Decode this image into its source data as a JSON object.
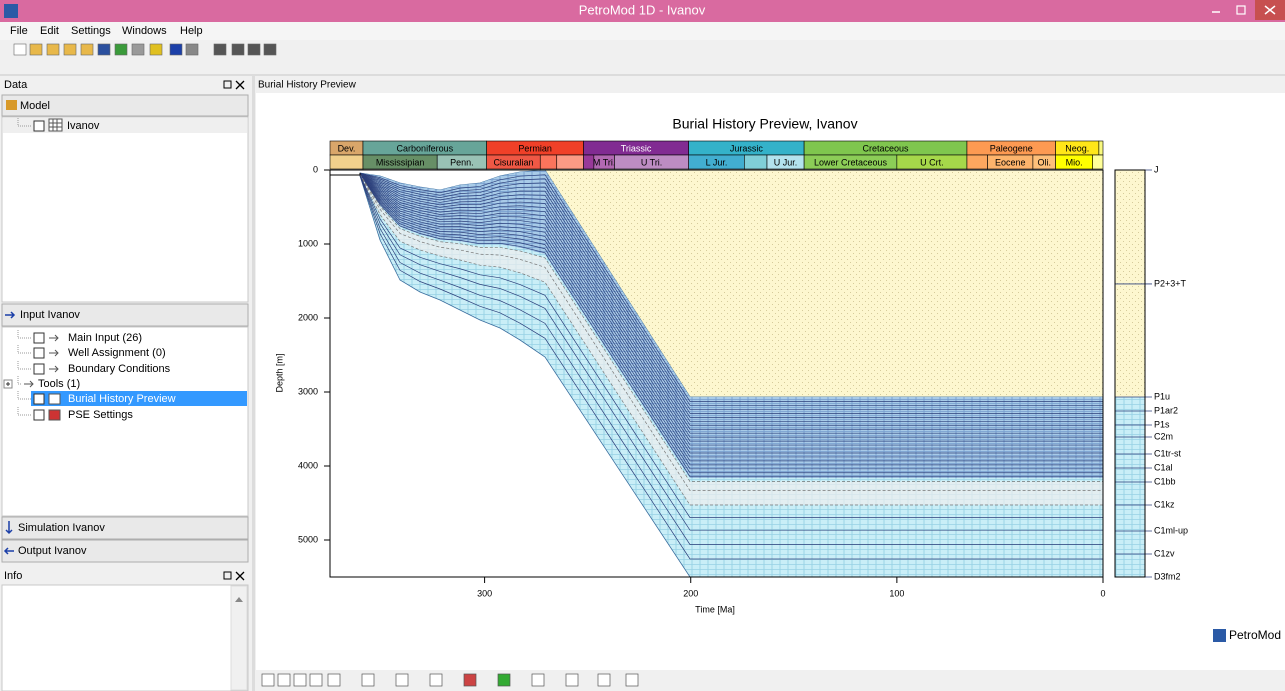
{
  "window": {
    "title": "PetroMod 1D - Ivanov"
  },
  "menu": [
    "File",
    "Edit",
    "Settings",
    "Windows",
    "Help"
  ],
  "data_panel": {
    "title": "Data",
    "model_button": "Model",
    "model_tree": [
      "Ivanov"
    ],
    "input_button": "Input Ivanov",
    "input_tree": [
      "Main Input (26)",
      "Well Assignment (0)",
      "Boundary Conditions",
      "Tools (1)",
      "Burial History Preview",
      "PSE Settings"
    ],
    "simulation_button": "Simulation Ivanov",
    "output_button": "Output Ivanov"
  },
  "info_panel": {
    "title": "Info"
  },
  "view": {
    "title": "Burial History Preview"
  },
  "logo": "PetroMod",
  "chart_data": {
    "type": "burial-history",
    "title": "Burial History Preview, Ivanov",
    "x_label": "Time [Ma]",
    "y_label": "Depth [m]",
    "xlim": [
      375,
      0
    ],
    "xticks": [
      300,
      200,
      100,
      0
    ],
    "ylim": [
      0,
      5500
    ],
    "yticks": [
      0,
      1000,
      2000,
      3000,
      4000,
      5000
    ],
    "periods": [
      {
        "name": "Dev.",
        "start": 375,
        "end": 359,
        "color": "#d9a66a"
      },
      {
        "name": "Carboniferous",
        "start": 359,
        "end": 299,
        "color": "#67a599"
      },
      {
        "name": "Permian",
        "start": 299,
        "end": 252,
        "color": "#f04028"
      },
      {
        "name": "Triassic",
        "start": 252,
        "end": 201,
        "color": "#812b92"
      },
      {
        "name": "Jurassic",
        "start": 201,
        "end": 145,
        "color": "#34b2c9"
      },
      {
        "name": "Cretaceous",
        "start": 145,
        "end": 66,
        "color": "#7fc64e"
      },
      {
        "name": "Paleogene",
        "start": 66,
        "end": 23,
        "color": "#fd9a52"
      },
      {
        "name": "Neog.",
        "start": 23,
        "end": 2,
        "color": "#ffe619"
      },
      {
        "start": 2,
        "end": 0,
        "color": "#f9f97f"
      }
    ],
    "epochs": [
      {
        "start": 375,
        "end": 359,
        "color": "#f1d08c"
      },
      {
        "name": "Mississipian",
        "start": 359,
        "end": 323,
        "color": "#678f66"
      },
      {
        "name": "Penn.",
        "start": 323,
        "end": 299,
        "color": "#99c2b5"
      },
      {
        "name": "Cisuralian",
        "start": 299,
        "end": 273,
        "color": "#ef5845"
      },
      {
        "start": 273,
        "end": 265,
        "color": "#fb745c"
      },
      {
        "start": 265,
        "end": 252,
        "color": "#fb9a85"
      },
      {
        "start": 252,
        "end": 247,
        "color": "#983999"
      },
      {
        "name": "M Tri.",
        "start": 247,
        "end": 237,
        "color": "#b168b1"
      },
      {
        "name": "U Tri.",
        "start": 237,
        "end": 201,
        "color": "#bd8cc3"
      },
      {
        "name": "L Jur.",
        "start": 201,
        "end": 174,
        "color": "#42aed0"
      },
      {
        "start": 174,
        "end": 163,
        "color": "#80cfd8"
      },
      {
        "name": "U Jur.",
        "start": 163,
        "end": 145,
        "color": "#b3e3ee"
      },
      {
        "name": "Lower Cretaceous",
        "start": 145,
        "end": 100,
        "color": "#8ccd57"
      },
      {
        "name": "U Crt.",
        "start": 100,
        "end": 66,
        "color": "#a6d84a"
      },
      {
        "start": 66,
        "end": 56,
        "color": "#fda75f"
      },
      {
        "name": "Eocene",
        "start": 56,
        "end": 34,
        "color": "#fdb46c"
      },
      {
        "name": "Oli.",
        "start": 34,
        "end": 23,
        "color": "#fec07a"
      },
      {
        "name": "Mio.",
        "start": 23,
        "end": 5,
        "color": "#ffff00"
      },
      {
        "start": 5,
        "end": 0,
        "color": "#ffff99"
      }
    ],
    "layers": [
      {
        "name": "J",
        "depth": 0
      },
      {
        "name": "P2+3+T",
        "depth": 1540
      },
      {
        "name": "P1u",
        "depth": 3068
      },
      {
        "name": "P1ar2",
        "depth": 3257
      },
      {
        "name": "P1s",
        "depth": 3446
      },
      {
        "name": "C2m",
        "depth": 3608
      },
      {
        "name": "C1tr-st",
        "depth": 3838
      },
      {
        "name": "C1al",
        "depth": 4027
      },
      {
        "name": "C1bb",
        "depth": 4216
      },
      {
        "name": "C1kz",
        "depth": 4527
      },
      {
        "name": "C1ml-up",
        "depth": 4878
      },
      {
        "name": "C1zv",
        "depth": 5189
      },
      {
        "name": "D3fm2",
        "depth": 5500
      }
    ]
  }
}
